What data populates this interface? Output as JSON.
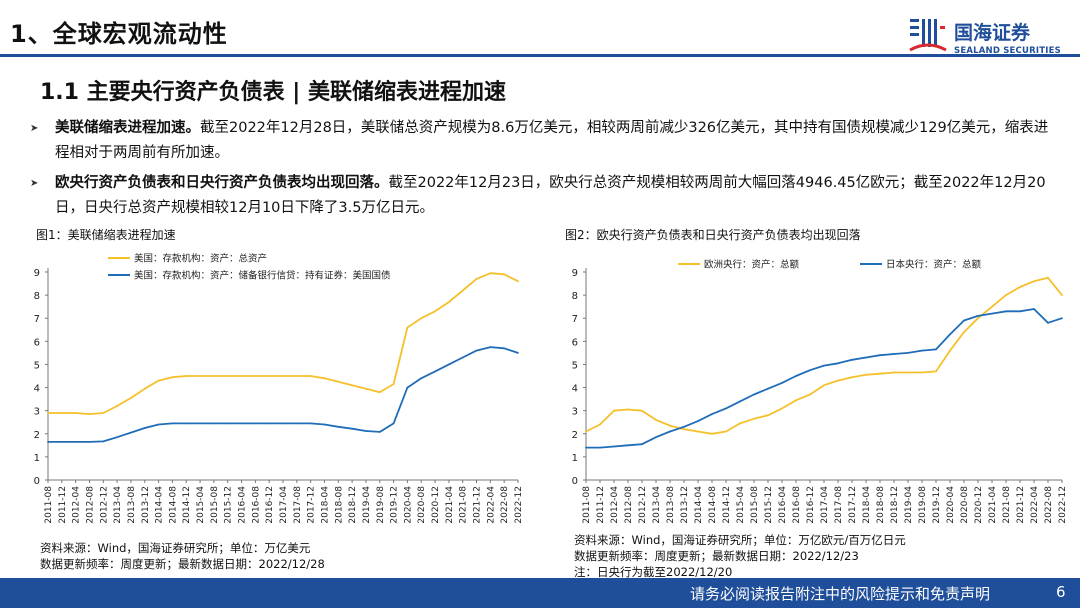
{
  "header": {
    "section_title": "1、全球宏观流动性",
    "logo_cn": "国海证券",
    "logo_en": "SEALAND SECURITIES"
  },
  "subtitle": "1.1 主要央行资产负债表 | 美联储缩表进程加速",
  "bullets": [
    {
      "lead": "美联储缩表进程加速。",
      "text": "截至2022年12月28日，美联储总资产规模为8.6万亿美元，相较两周前减少326亿美元，其中持有国债规模减少129亿美元，缩表进程相对于两周前有所加速。"
    },
    {
      "lead": "欧央行资产负债表和日央行资产负债表均出现回落。",
      "text": "截至2022年12月23日，欧央行总资产规模相较两周前大幅回落4946.45亿欧元；截至2022年12月20日，日央行总资产规模相较12月10日下降了3.5万亿日元。"
    }
  ],
  "figure1": {
    "title": "图1：美联储缩表进程加速",
    "source": "资料来源：Wind，国海证券研究所；单位：万亿美元",
    "update": "数据更新频率：周度更新；最新数据日期：2022/12/28"
  },
  "figure2": {
    "title": "图2：欧央行资产负债表和日央行资产负债表均出现回落",
    "source": "资料来源：Wind，国海证券研究所；单位：万亿欧元/百万亿日元",
    "update": "数据更新频率：周度更新；最新数据日期：2022/12/23",
    "note": "注：日央行为截至2022/12/20"
  },
  "footer": {
    "disclaimer": "请务必阅读报告附注中的风险提示和免责声明",
    "page": "6"
  },
  "colors": {
    "brand": "#1f4e9a",
    "series_yellow": "#f5c02b",
    "series_blue": "#1f6cb8"
  },
  "chart_data": [
    {
      "type": "line",
      "title": "美联储缩表进程加速",
      "xlabel": "",
      "ylabel": "万亿美元",
      "ylim": [
        0,
        9
      ],
      "yticks": [
        "0",
        "1",
        "2",
        "3",
        "4",
        "5",
        "6",
        "7",
        "8",
        "9"
      ],
      "legend_position": "top-left",
      "categories": [
        "2011-08",
        "2011-12",
        "2012-04",
        "2012-08",
        "2012-12",
        "2013-04",
        "2013-08",
        "2013-12",
        "2014-04",
        "2014-08",
        "2014-12",
        "2015-04",
        "2015-08",
        "2015-12",
        "2016-04",
        "2016-08",
        "2016-12",
        "2017-04",
        "2017-08",
        "2017-12",
        "2018-04",
        "2018-08",
        "2018-12",
        "2019-04",
        "2019-08",
        "2019-12",
        "2020-04",
        "2020-08",
        "2020-12",
        "2021-04",
        "2021-08",
        "2021-12",
        "2022-04",
        "2022-08",
        "2022-12"
      ],
      "series": [
        {
          "name": "美国：存款机构：资产：总资产",
          "color": "#f5c02b",
          "values": [
            2.9,
            2.9,
            2.9,
            2.85,
            2.9,
            3.2,
            3.55,
            3.95,
            4.3,
            4.45,
            4.5,
            4.5,
            4.5,
            4.5,
            4.5,
            4.5,
            4.5,
            4.5,
            4.5,
            4.5,
            4.4,
            4.25,
            4.1,
            3.95,
            3.8,
            4.15,
            6.6,
            7.0,
            7.3,
            7.7,
            8.2,
            8.7,
            8.95,
            8.9,
            8.6
          ]
        },
        {
          "name": "美国：存款机构：资产：储备银行信贷：持有证券：美国国债",
          "color": "#1f6cb8",
          "values": [
            1.65,
            1.65,
            1.65,
            1.65,
            1.67,
            1.85,
            2.05,
            2.25,
            2.4,
            2.45,
            2.45,
            2.45,
            2.45,
            2.45,
            2.45,
            2.45,
            2.45,
            2.45,
            2.45,
            2.45,
            2.4,
            2.3,
            2.22,
            2.12,
            2.08,
            2.45,
            4.0,
            4.4,
            4.7,
            5.0,
            5.3,
            5.6,
            5.75,
            5.7,
            5.5
          ]
        }
      ]
    },
    {
      "type": "line",
      "title": "欧央行资产负债表和日央行资产负债表均出现回落",
      "xlabel": "",
      "ylabel": "万亿欧元/百万亿日元",
      "ylim": [
        0,
        9
      ],
      "yticks": [
        "0",
        "1",
        "2",
        "3",
        "4",
        "5",
        "6",
        "7",
        "8",
        "9"
      ],
      "legend_position": "top",
      "categories": [
        "2011-08",
        "2011-12",
        "2012-04",
        "2012-08",
        "2012-12",
        "2013-04",
        "2013-08",
        "2013-12",
        "2014-04",
        "2014-08",
        "2014-12",
        "2015-04",
        "2015-08",
        "2015-12",
        "2016-04",
        "2016-08",
        "2016-12",
        "2017-04",
        "2017-08",
        "2017-12",
        "2018-04",
        "2018-08",
        "2018-12",
        "2019-04",
        "2019-08",
        "2019-12",
        "2020-04",
        "2020-08",
        "2020-12",
        "2021-04",
        "2021-08",
        "2021-12",
        "2022-04",
        "2022-08",
        "2022-12"
      ],
      "series": [
        {
          "name": "欧洲央行：资产：总额",
          "color": "#f5c02b",
          "values": [
            2.1,
            2.4,
            3.0,
            3.05,
            3.0,
            2.6,
            2.35,
            2.2,
            2.1,
            2.0,
            2.1,
            2.45,
            2.65,
            2.8,
            3.1,
            3.45,
            3.7,
            4.1,
            4.3,
            4.45,
            4.55,
            4.6,
            4.65,
            4.65,
            4.65,
            4.7,
            5.6,
            6.4,
            7.0,
            7.5,
            8.0,
            8.35,
            8.6,
            8.75,
            8.0
          ]
        },
        {
          "name": "日本央行：资产：总额",
          "color": "#1f6cb8",
          "values": [
            1.4,
            1.4,
            1.45,
            1.5,
            1.55,
            1.85,
            2.1,
            2.3,
            2.55,
            2.85,
            3.1,
            3.4,
            3.7,
            3.95,
            4.2,
            4.5,
            4.75,
            4.95,
            5.05,
            5.2,
            5.3,
            5.4,
            5.45,
            5.5,
            5.6,
            5.65,
            6.3,
            6.9,
            7.1,
            7.2,
            7.3,
            7.3,
            7.4,
            6.8,
            7.0
          ]
        }
      ]
    }
  ]
}
